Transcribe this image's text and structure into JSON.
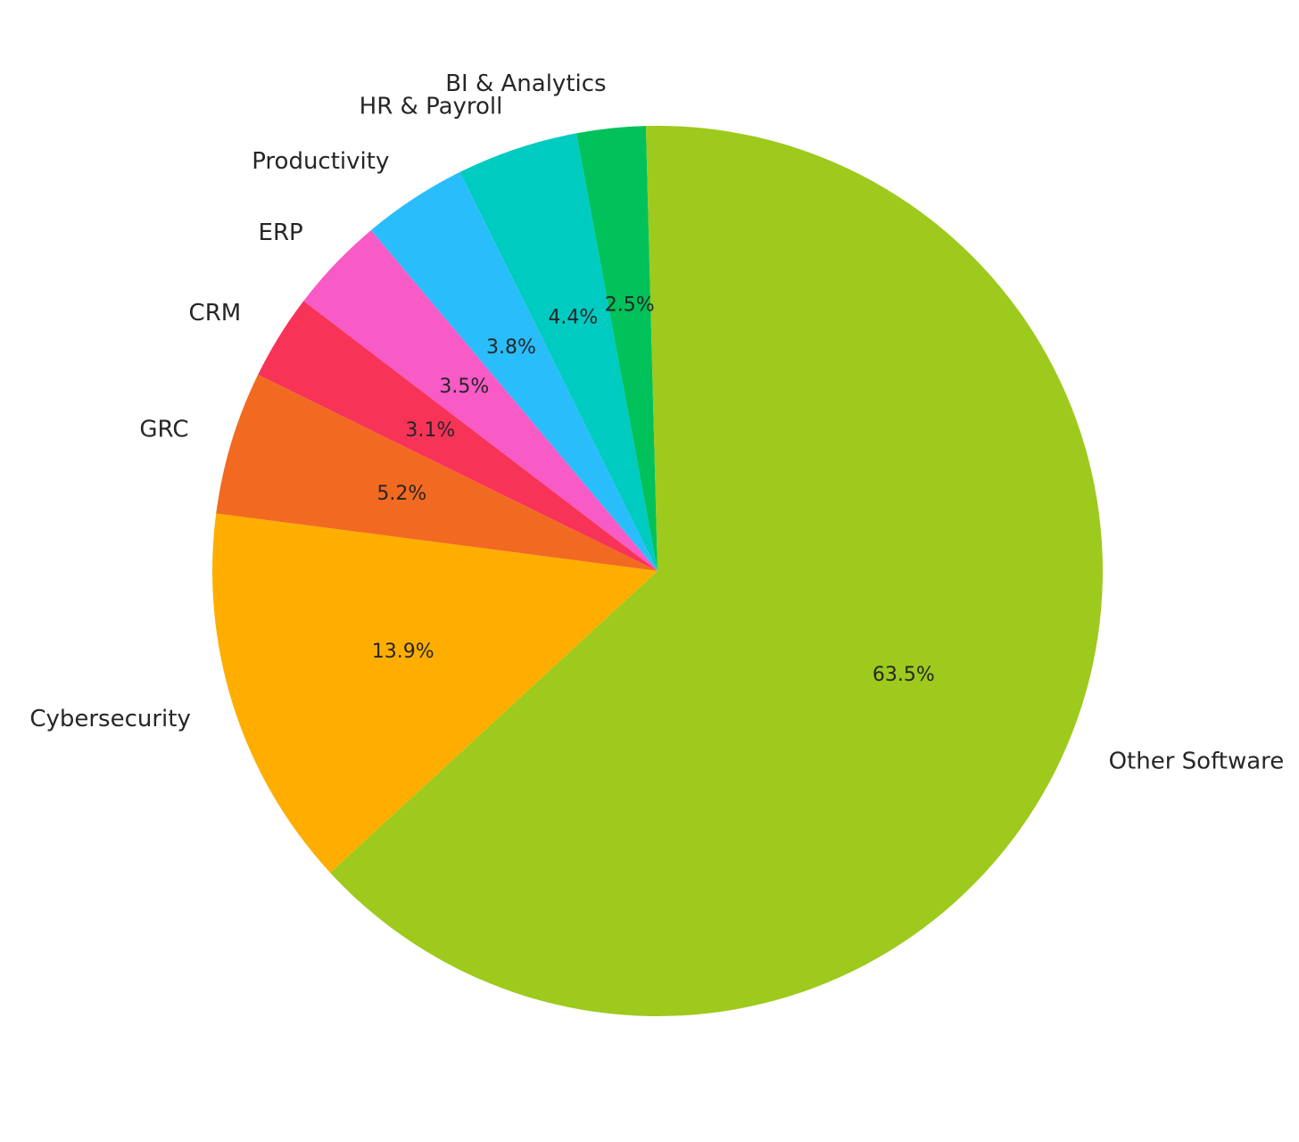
{
  "chart_data": {
    "type": "pie",
    "title": "",
    "start_angle_deg": 91.5,
    "direction": "counterclockwise",
    "slices": [
      {
        "label": "BI & Analytics",
        "pct_text": "2.5%",
        "value": 2.5,
        "color": "#00C15A"
      },
      {
        "label": "HR & Payroll",
        "pct_text": "4.4%",
        "value": 4.4,
        "color": "#00CBC1"
      },
      {
        "label": "Productivity",
        "pct_text": "3.8%",
        "value": 3.8,
        "color": "#29BDFC"
      },
      {
        "label": "ERP",
        "pct_text": "3.5%",
        "value": 3.5,
        "color": "#F85AC6"
      },
      {
        "label": "CRM",
        "pct_text": "3.1%",
        "value": 3.1,
        "color": "#F83358"
      },
      {
        "label": "GRC",
        "pct_text": "5.2%",
        "value": 5.2,
        "color": "#F26A21"
      },
      {
        "label": "Cybersecurity",
        "pct_text": "13.9%",
        "value": 13.9,
        "color": "#FFAE00"
      },
      {
        "label": "Other Software",
        "pct_text": "63.5%",
        "value": 63.5,
        "color": "#9DCA1D"
      }
    ],
    "legend": "none"
  }
}
